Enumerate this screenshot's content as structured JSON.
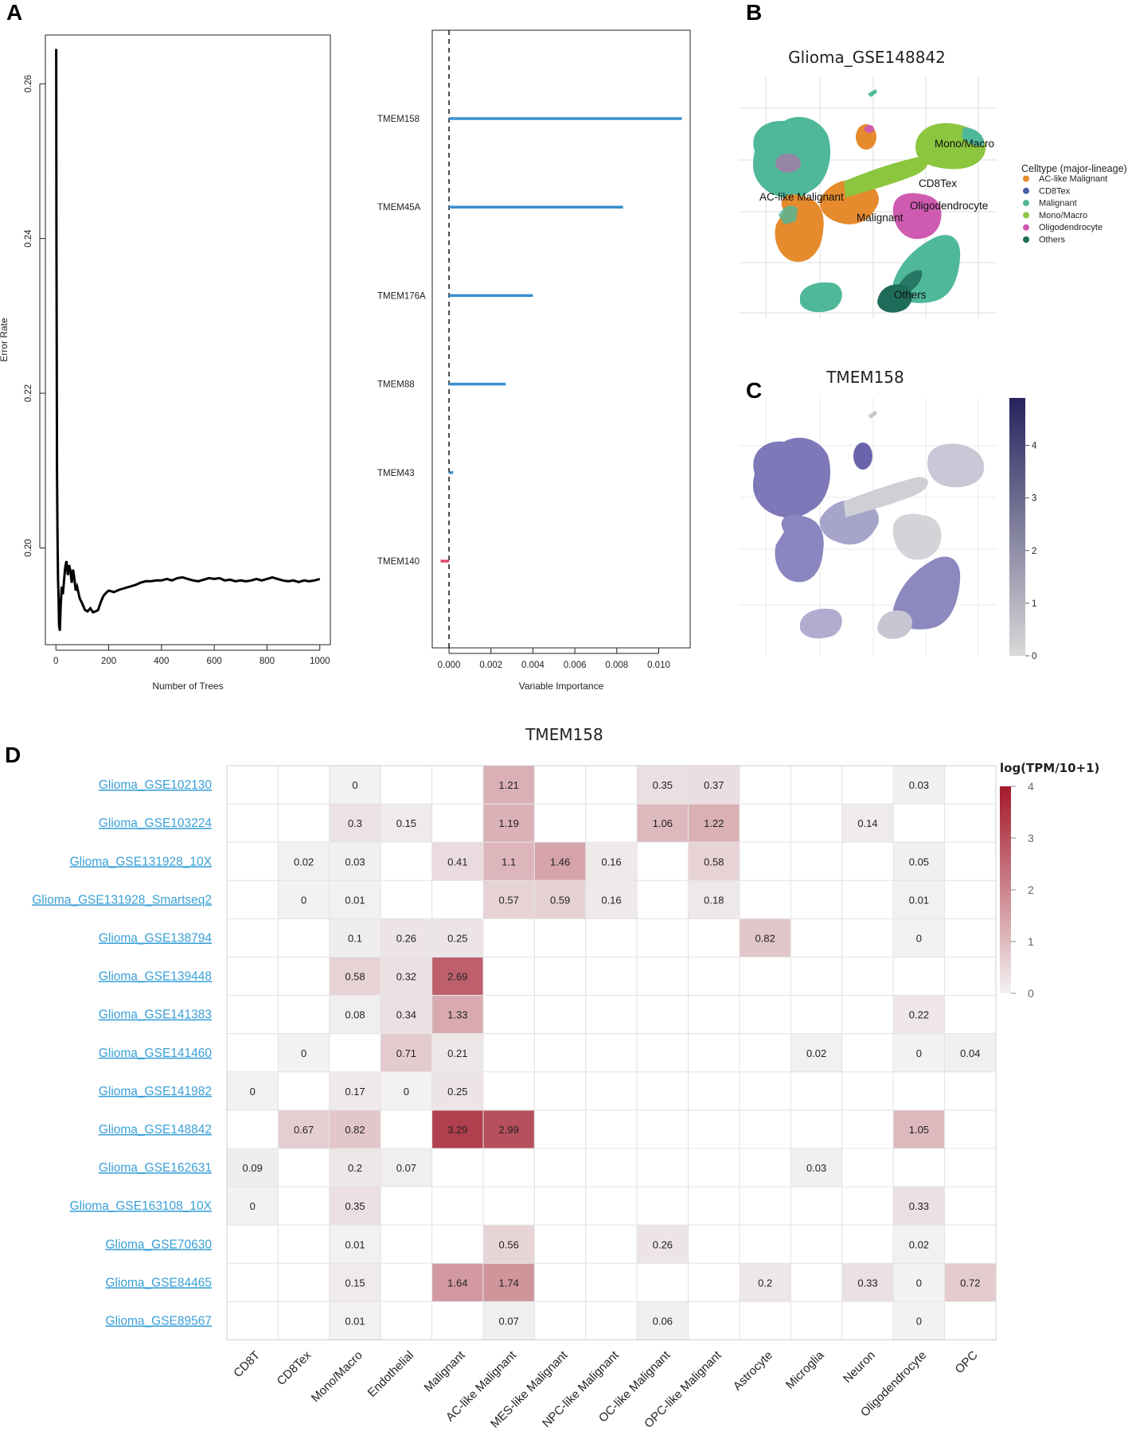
{
  "panel_labels": {
    "a": "A",
    "b": "B",
    "c": "C",
    "d": "D"
  },
  "chart_data": [
    {
      "id": "error_rate",
      "type": "line",
      "xlabel": "Number of Trees",
      "ylabel": "Error Rate",
      "xlim": [
        -40,
        1040
      ],
      "ylim": [
        0.1875,
        0.2663
      ],
      "xticks": [
        0,
        200,
        400,
        600,
        800,
        1000
      ],
      "yticks": [
        0.2,
        0.22,
        0.24,
        0.26
      ],
      "ytick_labels": [
        "0.20",
        "0.22",
        "0.24",
        "0.26"
      ],
      "series": [
        {
          "name": "Error Rate",
          "color": "#000000",
          "x": [
            1,
            2,
            3,
            4,
            6,
            8,
            10,
            12,
            15,
            18,
            22,
            26,
            30,
            35,
            40,
            45,
            50,
            55,
            60,
            65,
            70,
            75,
            80,
            90,
            100,
            110,
            120,
            130,
            140,
            150,
            160,
            170,
            180,
            190,
            200,
            220,
            240,
            260,
            280,
            300,
            320,
            340,
            360,
            380,
            400,
            420,
            440,
            460,
            480,
            500,
            520,
            540,
            560,
            580,
            600,
            620,
            640,
            660,
            680,
            700,
            720,
            740,
            760,
            780,
            800,
            820,
            840,
            860,
            880,
            900,
            920,
            940,
            960,
            980,
            1000
          ],
          "y": [
            0.2645,
            0.24,
            0.224,
            0.21,
            0.202,
            0.196,
            0.1935,
            0.19,
            0.1893,
            0.1925,
            0.195,
            0.194,
            0.1955,
            0.1975,
            0.1983,
            0.1965,
            0.1978,
            0.197,
            0.1955,
            0.1972,
            0.196,
            0.1945,
            0.195,
            0.1935,
            0.1928,
            0.192,
            0.1918,
            0.1922,
            0.1917,
            0.1918,
            0.192,
            0.193,
            0.1938,
            0.1942,
            0.1945,
            0.1943,
            0.1946,
            0.1948,
            0.195,
            0.1952,
            0.1955,
            0.1957,
            0.1957,
            0.1958,
            0.1958,
            0.196,
            0.1958,
            0.1961,
            0.1962,
            0.196,
            0.1958,
            0.1957,
            0.1959,
            0.1961,
            0.196,
            0.1961,
            0.1958,
            0.1959,
            0.1957,
            0.1958,
            0.1957,
            0.1958,
            0.196,
            0.1958,
            0.196,
            0.1962,
            0.196,
            0.1958,
            0.1957,
            0.1958,
            0.1956,
            0.1958,
            0.1957,
            0.1958,
            0.196
          ]
        }
      ]
    },
    {
      "id": "variable_importance",
      "type": "bar",
      "orientation": "horizontal",
      "xlabel": "Variable Importance",
      "xlim": [
        -0.0008,
        0.0115
      ],
      "xticks": [
        0.0,
        0.002,
        0.004,
        0.006,
        0.008,
        0.01
      ],
      "xtick_labels": [
        "0.000",
        "0.002",
        "0.004",
        "0.006",
        "0.008",
        "0.010"
      ],
      "reference_line": 0,
      "categories": [
        "TMEM158",
        "TMEM45A",
        "TMEM176A",
        "TMEM88",
        "TMEM43",
        "TMEM140"
      ],
      "values": [
        0.0111,
        0.0083,
        0.004,
        0.0027,
        0.0002,
        -0.0004
      ],
      "colors": [
        "#3a8fd0",
        "#3a8fd0",
        "#3a8fd0",
        "#3a8fd0",
        "#3a8fd0",
        "#e0436a"
      ]
    },
    {
      "id": "umap_celltype",
      "type": "scatter",
      "title": "Glioma_GSE148842",
      "legend_title": "Celltype (major-lineage)",
      "legend_position": "right",
      "categories": [
        "AC-like Malignant",
        "CD8Tex",
        "Malignant",
        "Mono/Macro",
        "Oligodendrocyte",
        "Others"
      ],
      "colors": [
        "#e68a2e",
        "#4a5fa8",
        "#4fb89a",
        "#8cc63e",
        "#cf5bb0",
        "#1f6b5a"
      ],
      "annotations": [
        "Mono/Macro",
        "CD8Tex",
        "AC-like Malignant",
        "Oligodendrocyte",
        "Malignant",
        "Others"
      ]
    },
    {
      "id": "umap_expression",
      "type": "scatter",
      "title": "TMEM158",
      "colorbar_range": [
        0,
        4.9
      ],
      "colorbar_ticks": [
        0,
        1,
        2,
        3,
        4
      ],
      "colorbar_colors": [
        "#d9d9d9",
        "#26235e"
      ]
    },
    {
      "id": "heatmap",
      "type": "heatmap",
      "title": "TMEM158",
      "colorbar_title": "log(TPM/10+1)",
      "colorbar_range": [
        0,
        4
      ],
      "colorbar_ticks": [
        0,
        1,
        2,
        3,
        4
      ],
      "colorbar_colors": [
        "#f2f2f2",
        "#a3192a"
      ],
      "columns": [
        "CD8T",
        "CD8Tex",
        "Mono/Macro",
        "Endothelial",
        "Malignant",
        "AC-like Malignant",
        "MES-like Malignant",
        "NPC-like Malignant",
        "OC-like Malignant",
        "OPC-like Malignant",
        "Astrocyte",
        "Microglia",
        "Neuron",
        "Oligodendrocyte",
        "OPC"
      ],
      "rows": [
        "Glioma_GSE102130",
        "Glioma_GSE103224",
        "Glioma_GSE131928_10X",
        "Glioma_GSE131928_Smartseq2",
        "Glioma_GSE138794",
        "Glioma_GSE139448",
        "Glioma_GSE141383",
        "Glioma_GSE141460",
        "Glioma_GSE141982",
        "Glioma_GSE148842",
        "Glioma_GSE162631",
        "Glioma_GSE163108_10X",
        "Glioma_GSE70630",
        "Glioma_GSE84465",
        "Glioma_GSE89567"
      ],
      "values": [
        [
          null,
          null,
          0,
          null,
          null,
          1.21,
          null,
          null,
          0.35,
          0.37,
          null,
          null,
          null,
          0.03,
          null
        ],
        [
          null,
          null,
          0.3,
          0.15,
          null,
          1.19,
          null,
          null,
          1.06,
          1.22,
          null,
          null,
          0.14,
          null,
          null
        ],
        [
          null,
          0.02,
          0.03,
          null,
          0.41,
          1.1,
          1.46,
          0.16,
          null,
          0.58,
          null,
          null,
          null,
          0.05,
          null
        ],
        [
          null,
          0,
          0.01,
          null,
          null,
          0.57,
          0.59,
          0.16,
          null,
          0.18,
          null,
          null,
          null,
          0.01,
          null
        ],
        [
          null,
          null,
          0.1,
          0.26,
          0.25,
          null,
          null,
          null,
          null,
          null,
          0.82,
          null,
          null,
          0,
          null
        ],
        [
          null,
          null,
          0.58,
          0.32,
          2.69,
          null,
          null,
          null,
          null,
          null,
          null,
          null,
          null,
          null,
          null
        ],
        [
          null,
          null,
          0.08,
          0.34,
          1.33,
          null,
          null,
          null,
          null,
          null,
          null,
          null,
          null,
          0.22,
          null
        ],
        [
          null,
          0,
          null,
          0.71,
          0.21,
          null,
          null,
          null,
          null,
          null,
          null,
          0.02,
          null,
          0,
          0.04
        ],
        [
          0,
          null,
          0.17,
          0,
          0.25,
          null,
          null,
          null,
          null,
          null,
          null,
          null,
          null,
          null,
          null
        ],
        [
          null,
          0.67,
          0.82,
          null,
          3.29,
          2.99,
          null,
          null,
          null,
          null,
          null,
          null,
          null,
          1.05,
          null
        ],
        [
          0.09,
          null,
          0.2,
          0.07,
          null,
          null,
          null,
          null,
          null,
          null,
          null,
          0.03,
          null,
          null,
          null
        ],
        [
          0,
          null,
          0.35,
          null,
          null,
          null,
          null,
          null,
          null,
          null,
          null,
          null,
          null,
          0.33,
          null
        ],
        [
          null,
          null,
          0.01,
          null,
          null,
          0.56,
          null,
          null,
          0.26,
          null,
          null,
          null,
          null,
          0.02,
          null
        ],
        [
          null,
          null,
          0.15,
          null,
          1.64,
          1.74,
          null,
          null,
          null,
          null,
          0.2,
          null,
          0.33,
          0,
          0.72
        ],
        [
          null,
          null,
          0.01,
          null,
          null,
          0.07,
          null,
          null,
          0.06,
          null,
          null,
          null,
          null,
          0,
          null
        ]
      ]
    }
  ]
}
